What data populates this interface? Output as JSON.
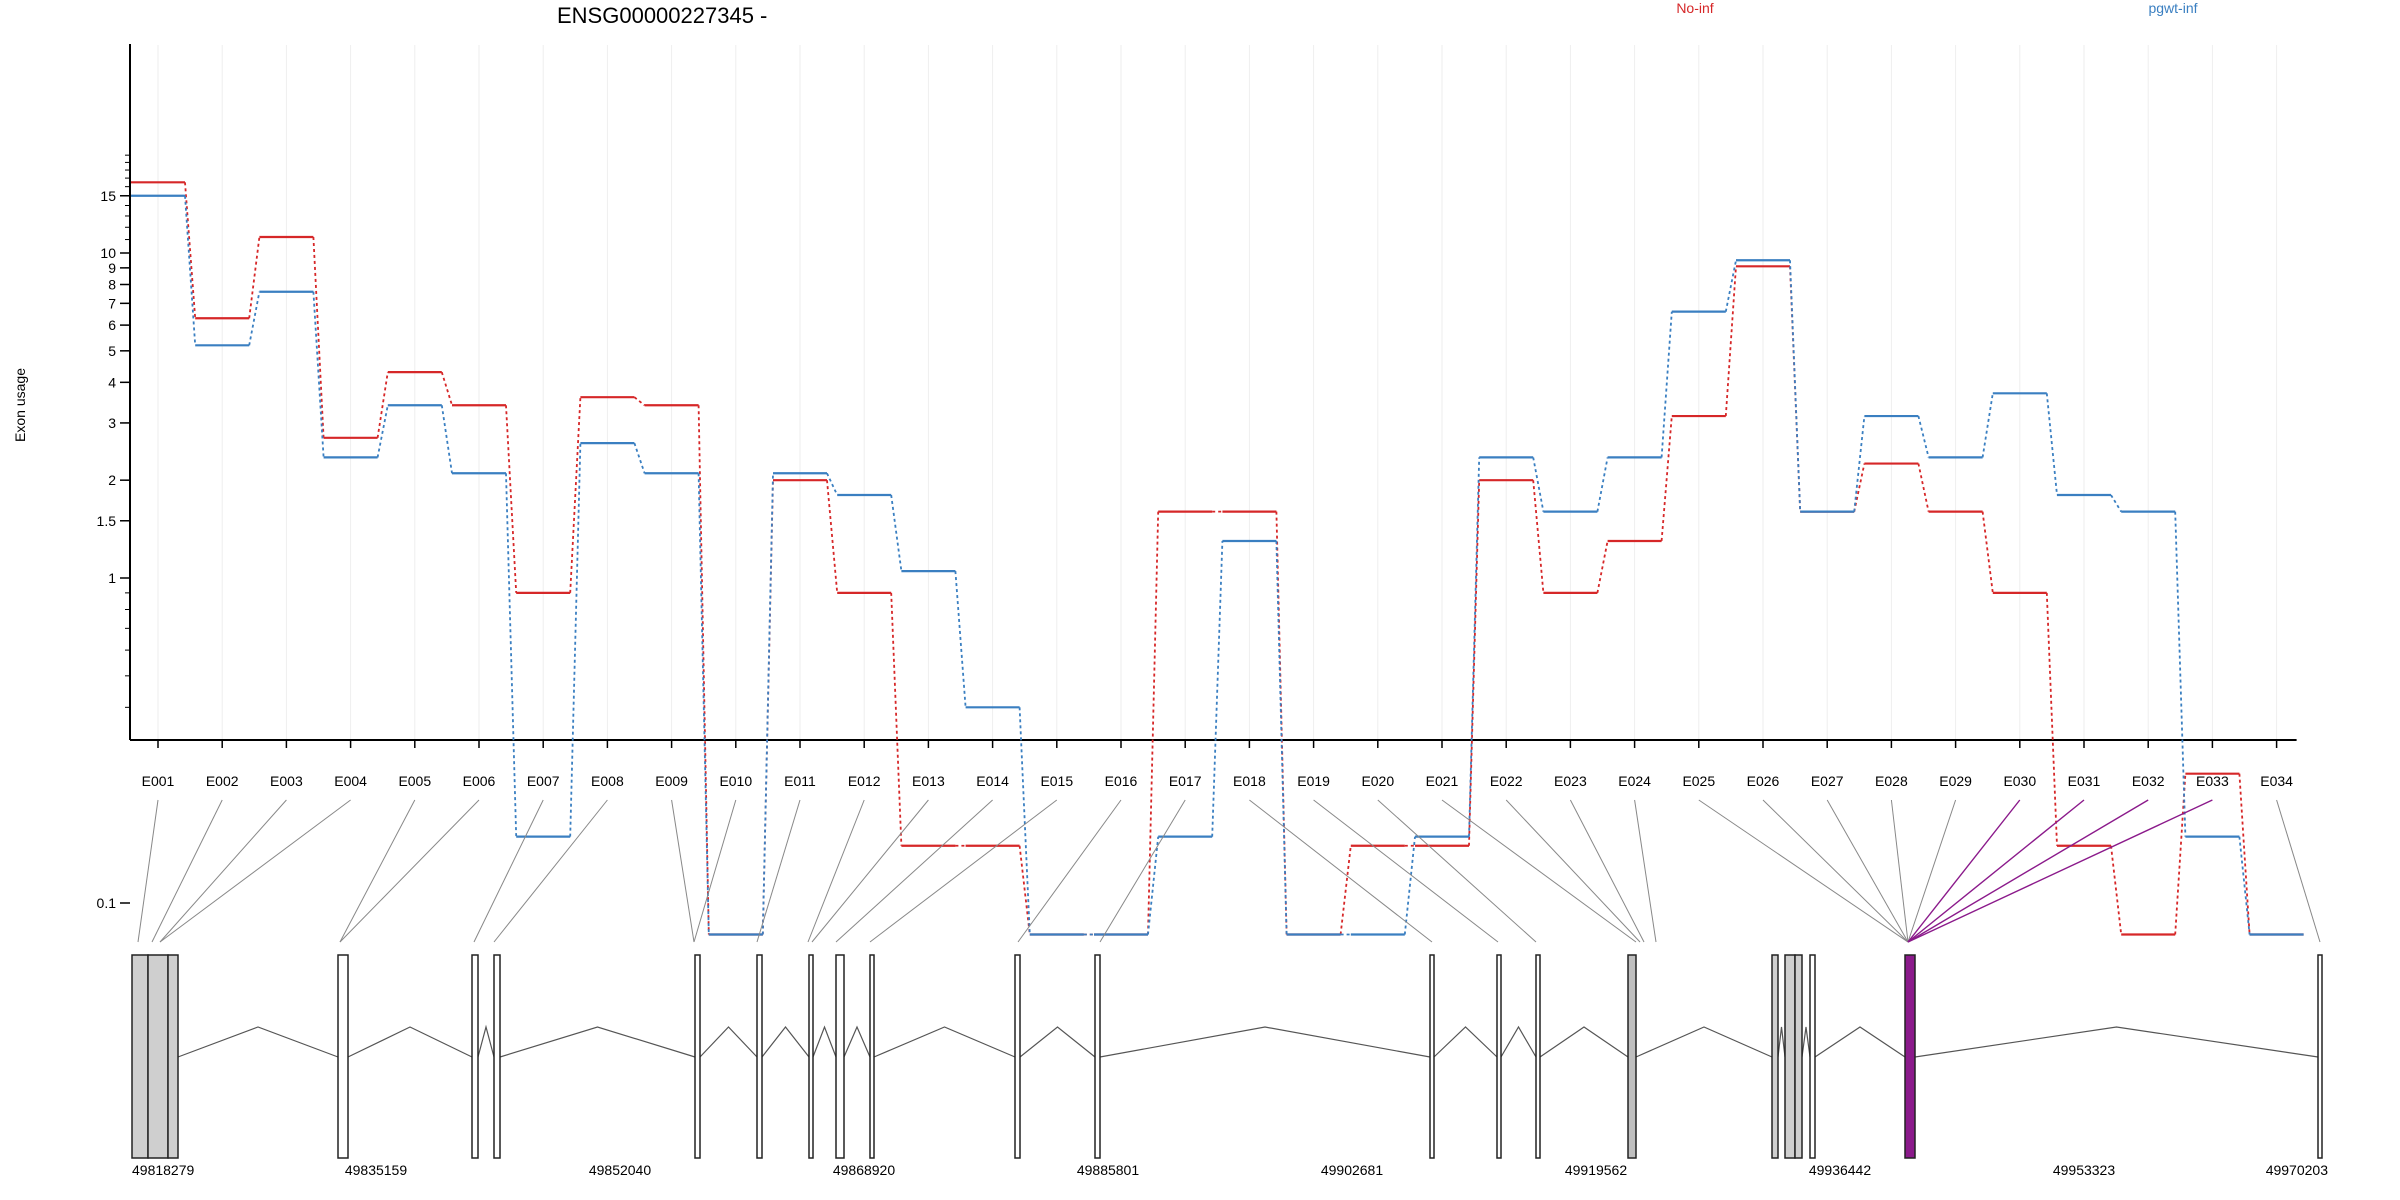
{
  "chart_data": {
    "type": "line",
    "title": "ENSG00000227345 -",
    "ylabel": "Exon usage",
    "y_scale": "log",
    "y_ticks": [
      "0.1",
      "1",
      "1.5",
      "2",
      "3",
      "4",
      "5",
      "6",
      "7",
      "8",
      "9",
      "10",
      "15"
    ],
    "grid": "vertical lines at exons",
    "legend_placement": "top-right",
    "categories": [
      "E001",
      "E002",
      "E003",
      "E004",
      "E005",
      "E006",
      "E007",
      "E008",
      "E009",
      "E010",
      "E011",
      "E012",
      "E013",
      "E014",
      "E015",
      "E016",
      "E017",
      "E018",
      "E019",
      "E020",
      "E021",
      "E022",
      "E023",
      "E024",
      "E025",
      "E026",
      "E027",
      "E028",
      "E029",
      "E030",
      "E031",
      "E032",
      "E033",
      "E034"
    ],
    "series": [
      {
        "name": "No-inf",
        "color": "#d62728",
        "values": [
          16.5,
          6.3,
          11.2,
          2.7,
          4.3,
          3.4,
          0.9,
          3.6,
          3.4,
          0.08,
          2.0,
          0.9,
          0.15,
          0.15,
          0.08,
          0.08,
          1.6,
          1.6,
          0.08,
          0.15,
          0.15,
          2.0,
          0.9,
          1.3,
          3.15,
          9.1,
          1.6,
          2.25,
          1.6,
          0.9,
          0.15,
          0.08,
          0.25,
          0.08
        ]
      },
      {
        "name": "pgwt-inf",
        "color": "#3a7fc1",
        "values": [
          15.0,
          5.2,
          7.6,
          2.35,
          3.4,
          2.1,
          0.16,
          2.6,
          2.1,
          0.08,
          2.1,
          1.8,
          1.05,
          0.4,
          0.08,
          0.08,
          0.16,
          1.3,
          0.08,
          0.08,
          0.16,
          2.35,
          1.6,
          2.35,
          6.6,
          9.5,
          1.6,
          3.15,
          2.35,
          3.7,
          1.8,
          1.6,
          0.16,
          0.08
        ]
      }
    ],
    "gene_model": {
      "coordinates": [
        "49818279",
        "49835159",
        "49852040",
        "49868920",
        "49885801",
        "49902681",
        "49919562",
        "49936442",
        "49953323",
        "49970203"
      ],
      "highlighted_exons": [
        "E030",
        "E031",
        "E032",
        "E033"
      ],
      "highlight_color": "#8b1a8b"
    }
  }
}
